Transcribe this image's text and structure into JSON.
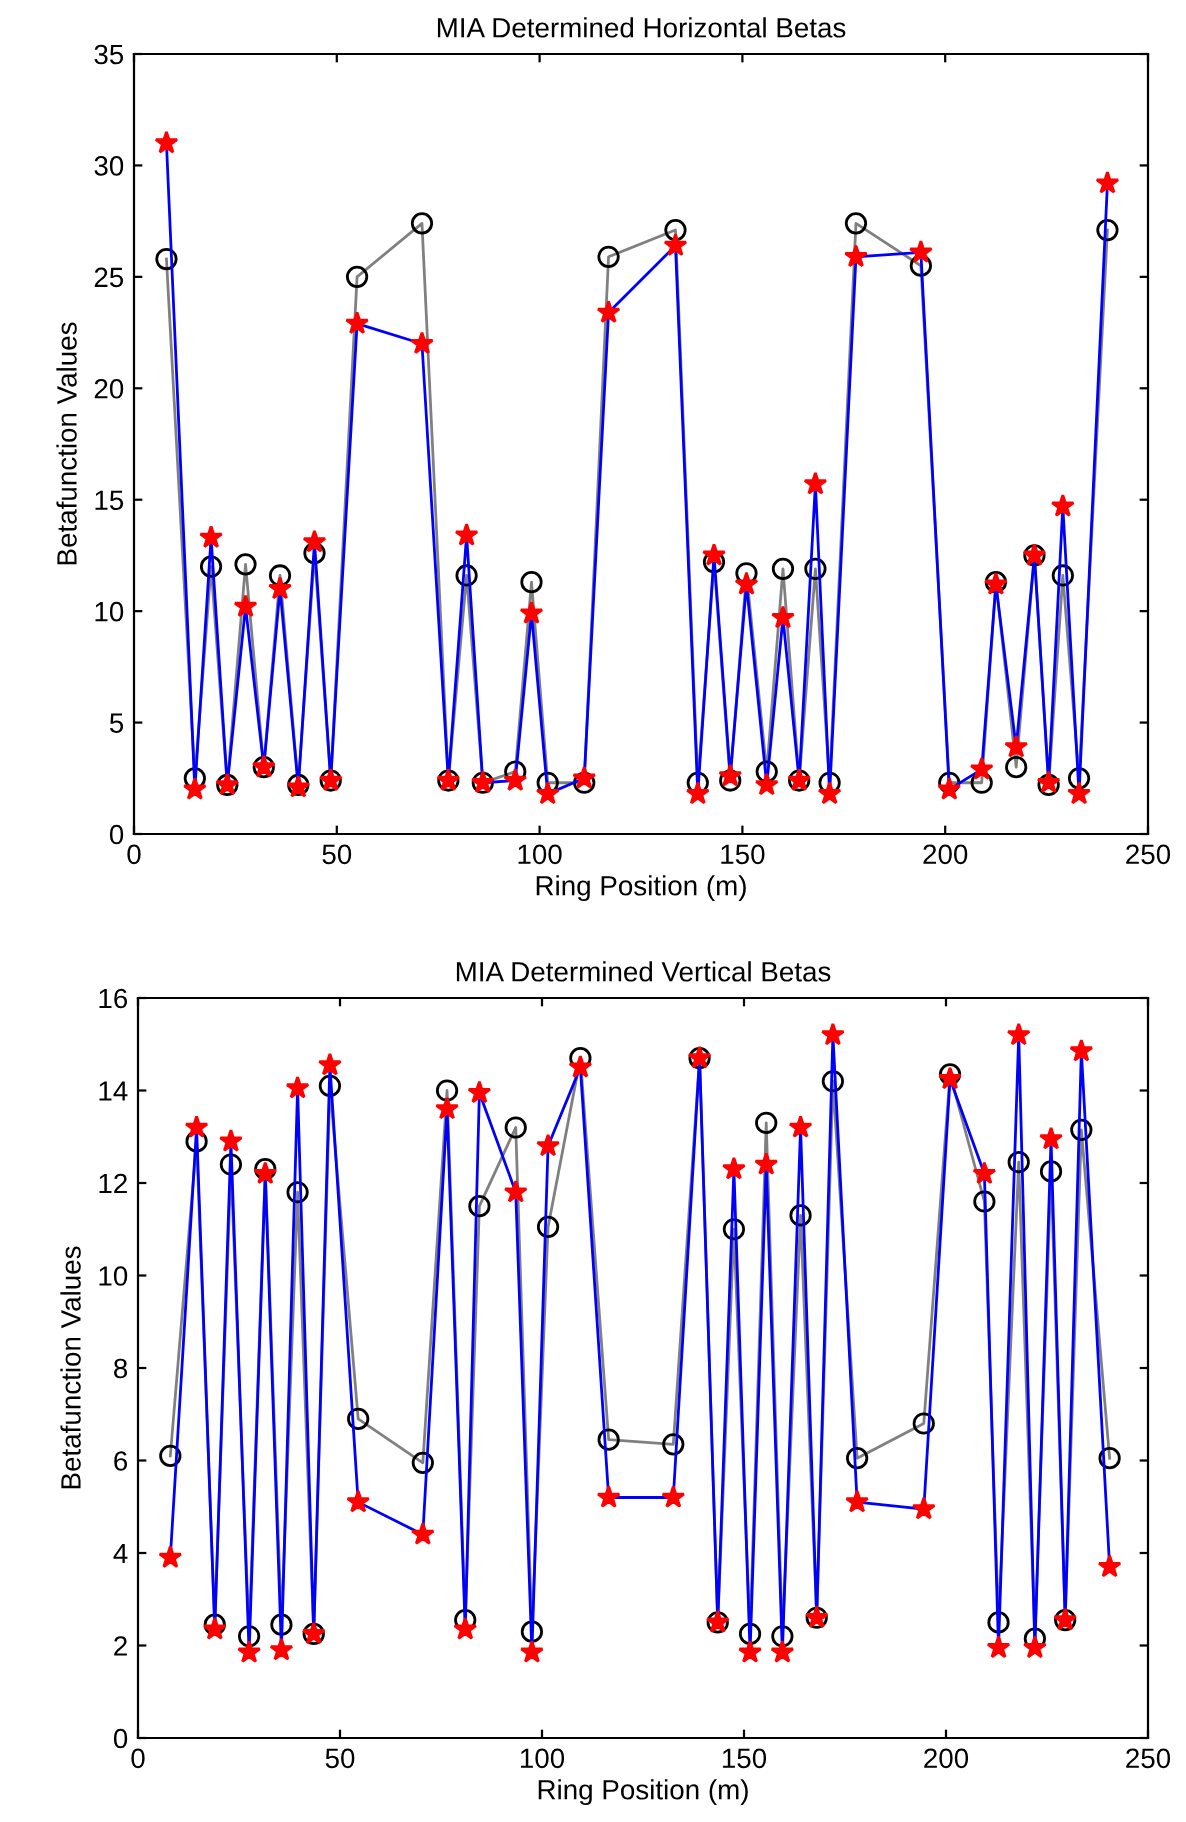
{
  "chart_data": [
    {
      "type": "line",
      "title": "MIA Determined Horizontal Betas",
      "xlabel": "Ring Position (m)",
      "ylabel": "Betafunction Values",
      "xlim": [
        0,
        250
      ],
      "xticks": [
        0,
        50,
        100,
        150,
        200,
        250
      ],
      "ylim": [
        0,
        35
      ],
      "yticks": [
        0,
        5,
        10,
        15,
        20,
        25,
        30,
        35
      ],
      "grid": false,
      "legend": false,
      "x": [
        8,
        15,
        19,
        23,
        27.5,
        32,
        36,
        40.5,
        44.5,
        48.5,
        55,
        71,
        77.5,
        82,
        86,
        94,
        98,
        102,
        111,
        117,
        133.5,
        139,
        143,
        147,
        151,
        156,
        160,
        164,
        168,
        171.5,
        178,
        194,
        201,
        209,
        212.5,
        217.5,
        222,
        225.5,
        229,
        233,
        240
      ],
      "series": [
        {
          "color": "#808080",
          "marker": "circle",
          "values": [
            25.8,
            2.5,
            12.0,
            2.2,
            12.1,
            3.0,
            11.6,
            2.2,
            12.6,
            2.4,
            25.0,
            27.4,
            2.4,
            11.6,
            2.3,
            2.8,
            11.3,
            2.3,
            2.3,
            25.9,
            27.1,
            2.3,
            12.2,
            2.4,
            11.7,
            2.8,
            11.9,
            2.4,
            11.9,
            2.3,
            27.4,
            25.5,
            2.3,
            2.3,
            11.3,
            3.0,
            12.5,
            2.2,
            11.6,
            2.5,
            27.1
          ]
        },
        {
          "color": "#0000ff",
          "marker": "star",
          "values": [
            31.0,
            2.0,
            13.3,
            2.2,
            10.2,
            3.0,
            11.0,
            2.1,
            13.1,
            2.4,
            22.9,
            22.0,
            2.4,
            13.4,
            2.3,
            2.4,
            9.9,
            1.8,
            2.5,
            23.4,
            26.4,
            1.8,
            12.5,
            2.6,
            11.2,
            2.2,
            9.7,
            2.4,
            15.7,
            1.8,
            25.9,
            26.1,
            2.0,
            2.9,
            11.2,
            3.9,
            12.5,
            2.3,
            14.7,
            1.8,
            29.2
          ]
        }
      ]
    },
    {
      "type": "line",
      "title": "MIA Determined Vertical Betas",
      "xlabel": "Ring Position (m)",
      "ylabel": "Betafunction Values",
      "xlim": [
        0,
        250
      ],
      "xticks": [
        0,
        50,
        100,
        150,
        200,
        250
      ],
      "ylim": [
        0,
        16
      ],
      "yticks": [
        0,
        2,
        4,
        6,
        8,
        10,
        12,
        14,
        16
      ],
      "grid": false,
      "legend": false,
      "x": [
        8,
        14.5,
        19,
        23,
        27.5,
        31.5,
        35.5,
        39.5,
        43.5,
        47.5,
        54.5,
        70.5,
        76.5,
        81,
        84.5,
        93.5,
        97.5,
        101.5,
        109.5,
        116.5,
        132.5,
        139,
        143.5,
        147.5,
        151.5,
        155.5,
        159.5,
        164,
        168,
        172,
        178,
        194.5,
        201,
        209.5,
        213,
        218,
        222,
        226,
        229.5,
        233.5,
        240.5
      ],
      "series": [
        {
          "color": "#808080",
          "marker": "circle",
          "values": [
            6.1,
            12.9,
            2.45,
            12.4,
            2.2,
            12.3,
            2.45,
            11.8,
            2.25,
            14.1,
            6.9,
            5.95,
            14.0,
            2.55,
            11.5,
            13.2,
            2.3,
            11.05,
            14.7,
            6.45,
            6.35,
            14.7,
            2.5,
            11.0,
            2.25,
            13.3,
            2.2,
            11.3,
            2.6,
            14.2,
            6.05,
            6.8,
            14.35,
            11.6,
            2.5,
            12.45,
            2.15,
            12.25,
            2.55,
            13.15,
            6.05
          ]
        },
        {
          "color": "#0000ff",
          "marker": "star",
          "values": [
            3.9,
            13.2,
            2.35,
            12.9,
            1.85,
            12.2,
            1.9,
            14.05,
            2.25,
            14.55,
            5.1,
            4.4,
            13.6,
            2.35,
            13.95,
            11.8,
            1.85,
            12.8,
            14.5,
            5.2,
            5.2,
            14.7,
            2.5,
            12.3,
            1.85,
            12.4,
            1.85,
            13.2,
            2.6,
            15.2,
            5.1,
            4.95,
            14.25,
            12.2,
            1.95,
            15.2,
            1.95,
            12.95,
            2.55,
            14.85,
            3.7
          ]
        }
      ]
    }
  ]
}
